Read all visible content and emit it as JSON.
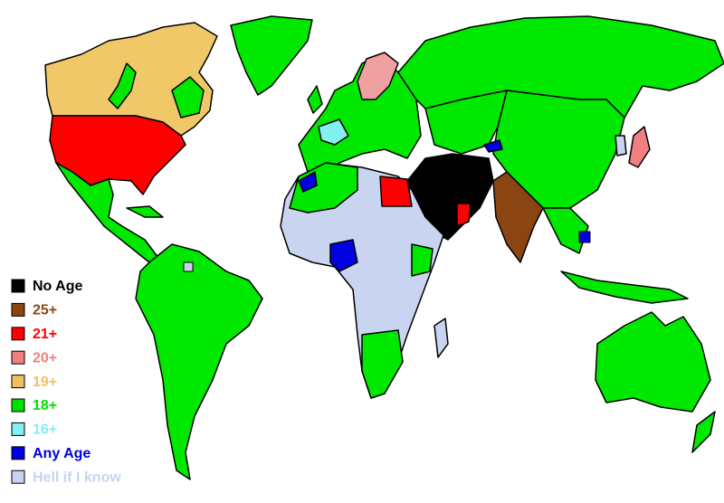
{
  "legend": {
    "items": [
      {
        "label": "No Age",
        "color": "#000000"
      },
      {
        "label": "25+",
        "color": "#8b4513"
      },
      {
        "label": "21+",
        "color": "#ff0000"
      },
      {
        "label": "20+",
        "color": "#f08080"
      },
      {
        "label": "19+",
        "color": "#f0c060"
      },
      {
        "label": "18+",
        "color": "#00e000"
      },
      {
        "label": "16+",
        "color": "#80f0f0"
      },
      {
        "label": "Any Age",
        "color": "#0000e0"
      },
      {
        "label": "Hell if I know",
        "color": "#c8d4f0"
      }
    ]
  }
}
